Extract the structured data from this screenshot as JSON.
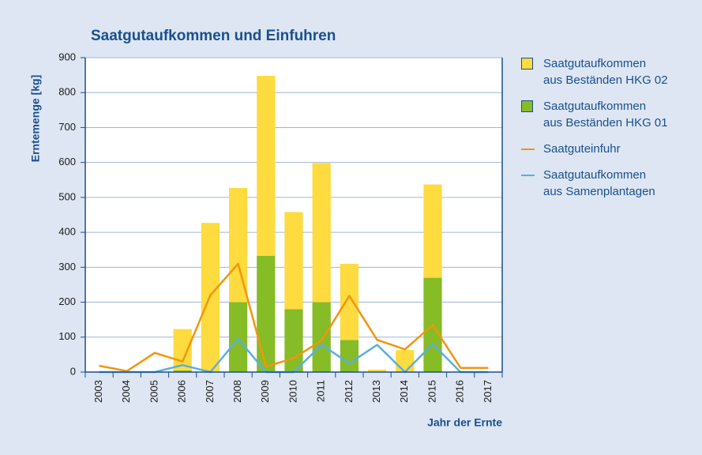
{
  "chart_data": {
    "type": "bar",
    "title": "Saatgutaufkommen und Einfuhren",
    "xlabel": "Jahr der Ernte",
    "ylabel": "Erntemenge [kg]",
    "categories": [
      "2003",
      "2004",
      "2005",
      "2006",
      "2007",
      "2008",
      "2009",
      "2010",
      "2011",
      "2012",
      "2013",
      "2014",
      "2015",
      "2016",
      "2017"
    ],
    "series": [
      {
        "name": "Saatgutaufkommen\naus Beständen HKG 02",
        "type": "bar",
        "color": "#fedb3f",
        "values": [
          0,
          0,
          0,
          118,
          427,
          327,
          515,
          278,
          398,
          218,
          7,
          63,
          267,
          0,
          0
        ]
      },
      {
        "name": "Saatgutaufkommen\naus Beständen HKG 01",
        "type": "bar",
        "color": "#86bc25",
        "values": [
          0,
          0,
          0,
          5,
          0,
          200,
          333,
          180,
          200,
          92,
          0,
          0,
          270,
          0,
          0
        ]
      },
      {
        "name": "Saatguteinfuhr",
        "type": "line",
        "color": "#f0960f",
        "values": [
          18,
          3,
          55,
          30,
          220,
          310,
          15,
          40,
          90,
          218,
          92,
          65,
          135,
          12,
          12
        ]
      },
      {
        "name": "Saatgutaufkommen\naus Samenplantagen",
        "type": "line",
        "color": "#5aaee0",
        "values": [
          0,
          0,
          0,
          20,
          0,
          95,
          0,
          0,
          78,
          25,
          78,
          0,
          80,
          0,
          0
        ]
      }
    ],
    "ylim": [
      0,
      900
    ],
    "yticks": [
      0,
      100,
      200,
      300,
      400,
      500,
      600,
      700,
      800,
      900
    ],
    "grid": true
  }
}
